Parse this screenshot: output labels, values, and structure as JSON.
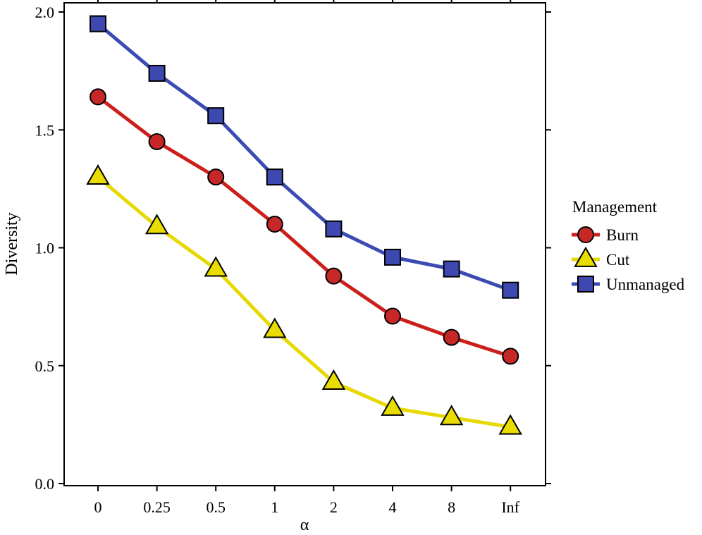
{
  "chart_data": {
    "type": "line",
    "xlabel": "α",
    "ylabel": "Diversity",
    "categories": [
      "0",
      "0.25",
      "0.5",
      "1",
      "2",
      "4",
      "8",
      "Inf"
    ],
    "ylim": [
      0,
      2.0
    ],
    "yticks": [
      "0.0",
      "0.5",
      "1.0",
      "1.5",
      "2.0"
    ],
    "ytick_values": [
      0,
      0.5,
      1.0,
      1.5,
      2.0
    ],
    "grid": false,
    "legend_title": "Management",
    "legend_position": "right",
    "series": [
      {
        "name": "Burn",
        "marker": "circle",
        "color": "#cc1f1a",
        "fill": "#c62828",
        "values": [
          1.64,
          1.45,
          1.3,
          1.1,
          0.88,
          0.71,
          0.62,
          0.54
        ]
      },
      {
        "name": "Cut",
        "marker": "triangle",
        "color": "#e6d800",
        "fill": "#e8dc00",
        "values": [
          1.3,
          1.09,
          0.91,
          0.65,
          0.43,
          0.32,
          0.28,
          0.24
        ]
      },
      {
        "name": "Unmanaged",
        "marker": "square",
        "color": "#3b4bb3",
        "fill": "#3d48b0",
        "values": [
          1.95,
          1.74,
          1.56,
          1.3,
          1.08,
          0.96,
          0.91,
          0.82
        ]
      }
    ]
  }
}
